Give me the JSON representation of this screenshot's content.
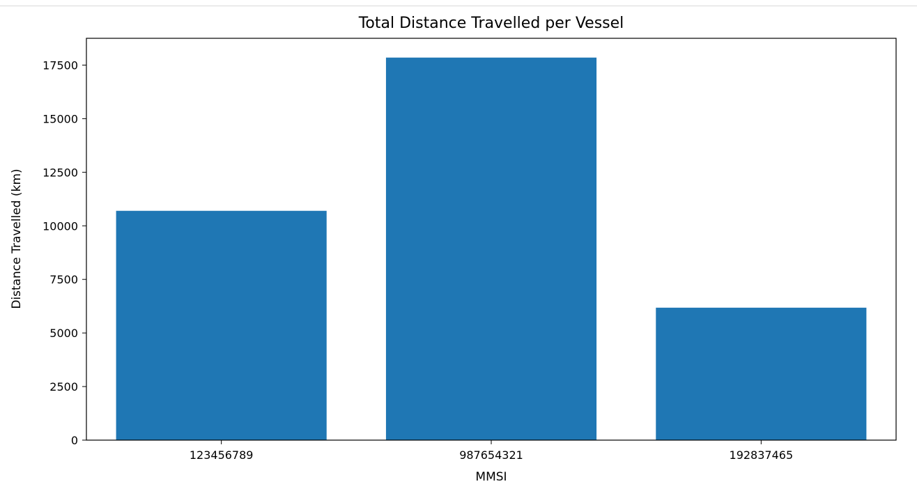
{
  "chart_data": {
    "type": "bar",
    "title": "Total Distance Travelled per Vessel",
    "xlabel": "MMSI",
    "ylabel": "Distance Travelled (km)",
    "categories": [
      "123456789",
      "987654321",
      "192837465"
    ],
    "values": [
      10700,
      17850,
      6180
    ],
    "ylim": [
      0,
      18750
    ],
    "yticks": [
      0,
      2500,
      5000,
      7500,
      10000,
      12500,
      15000,
      17500
    ],
    "grid": false,
    "legend": "none",
    "bar_color": "#1f77b4"
  }
}
